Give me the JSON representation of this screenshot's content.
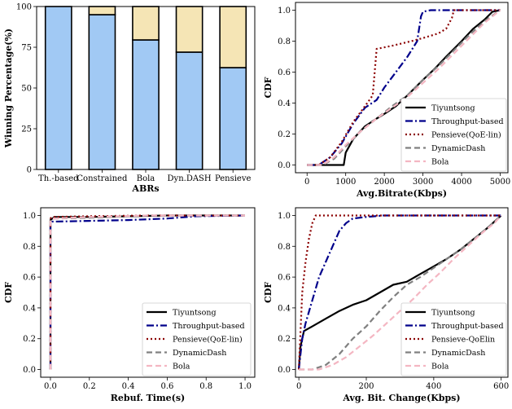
{
  "chart_data": [
    {
      "id": "a",
      "type": "bar",
      "stacked": true,
      "xlabel": "ABRs",
      "ylabel": "Winning Percentage(%)",
      "ylim": [
        0,
        100
      ],
      "yticks": [
        "0",
        "25",
        "50",
        "75",
        "100"
      ],
      "categories": [
        "Th.-based",
        "Constrained",
        "Bola",
        "Dyn.DASH",
        "Pensieve"
      ],
      "series": [
        {
          "values": [
            100,
            95,
            79.5,
            72,
            62.5
          ],
          "color": "#a1c9f4"
        },
        {
          "values": [
            0,
            5,
            20.5,
            28,
            37.5
          ],
          "color": "#f5e5b5"
        }
      ],
      "grid": false
    },
    {
      "id": "b",
      "type": "line",
      "xlabel": "Avg.Bitrate(Kbps)",
      "ylabel": "CDF",
      "xlim": [
        -300,
        5200
      ],
      "ylim": [
        -0.05,
        1.05
      ],
      "xticks": [
        "0",
        "1000",
        "2000",
        "3000",
        "4000",
        "5000"
      ],
      "yticks": [
        "0.0",
        "0.2",
        "0.4",
        "0.6",
        "0.8",
        "1.0"
      ],
      "legend_position": "bottom-right",
      "series": [
        {
          "name": "Tiyuntsong",
          "color": "#000000",
          "dash": "solid",
          "x": [
            0,
            950,
            1000,
            1200,
            1500,
            1800,
            2000,
            2300,
            2600,
            3000,
            3300,
            3600,
            4000,
            4300,
            4600,
            4800,
            5000
          ],
          "y": [
            0,
            0,
            0.08,
            0.17,
            0.25,
            0.3,
            0.33,
            0.38,
            0.45,
            0.55,
            0.62,
            0.7,
            0.8,
            0.88,
            0.94,
            0.99,
            1.0
          ]
        },
        {
          "name": "Throughput-based",
          "color": "#00008b",
          "dash": "dashdot",
          "x": [
            0,
            300,
            600,
            900,
            1200,
            1500,
            1800,
            2000,
            2300,
            2600,
            2850,
            2950,
            3000,
            3200,
            3600,
            5000
          ],
          "y": [
            0,
            0,
            0.05,
            0.14,
            0.27,
            0.37,
            0.42,
            0.5,
            0.6,
            0.7,
            0.8,
            0.96,
            0.99,
            1.0,
            1.0,
            1.0
          ]
        },
        {
          "name": "Pensieve(QoE-lin)",
          "color": "#8b0000",
          "dash": "dotted",
          "x": [
            0,
            300,
            600,
            900,
            1200,
            1500,
            1700,
            1800,
            2200,
            2700,
            3000,
            3400,
            3600,
            3750,
            3800,
            5000
          ],
          "y": [
            0,
            0,
            0.05,
            0.15,
            0.28,
            0.38,
            0.45,
            0.75,
            0.77,
            0.8,
            0.82,
            0.85,
            0.88,
            0.95,
            1.0,
            1.0
          ]
        },
        {
          "name": "DynamicDash",
          "color": "#808080",
          "dash": "dashed",
          "x": [
            0,
            400,
            700,
            1000,
            1400,
            1800,
            2200,
            2600,
            3000,
            3400,
            3800,
            4200,
            4600,
            5000
          ],
          "y": [
            0,
            0,
            0.04,
            0.12,
            0.22,
            0.3,
            0.38,
            0.45,
            0.55,
            0.64,
            0.74,
            0.84,
            0.93,
            1.0
          ]
        },
        {
          "name": "Bola",
          "color": "#f4b6c2",
          "dash": "dashed",
          "x": [
            0,
            400,
            700,
            1000,
            1400,
            1800,
            2200,
            2600,
            3000,
            3400,
            3800,
            4200,
            4600,
            5000
          ],
          "y": [
            0,
            0,
            0.05,
            0.13,
            0.22,
            0.3,
            0.37,
            0.44,
            0.53,
            0.62,
            0.72,
            0.82,
            0.92,
            1.0
          ]
        }
      ]
    },
    {
      "id": "c",
      "type": "line",
      "xlabel": "Rebuf. Time(s)",
      "ylabel": "CDF",
      "xlim": [
        -0.05,
        1.05
      ],
      "ylim": [
        -0.05,
        1.05
      ],
      "xticks": [
        "0.0",
        "0.2",
        "0.4",
        "0.6",
        "0.8",
        "1.0"
      ],
      "yticks": [
        "0.0",
        "0.2",
        "0.4",
        "0.6",
        "0.8",
        "1.0"
      ],
      "legend_position": "bottom-right",
      "series": [
        {
          "name": "Tiyuntsong",
          "color": "#000000",
          "dash": "solid",
          "x": [
            0,
            0,
            0.01,
            0.02,
            0.2,
            0.6,
            1.0
          ],
          "y": [
            0,
            0.97,
            0.98,
            0.99,
            0.99,
            1.0,
            1.0
          ]
        },
        {
          "name": "Throughput-based",
          "color": "#00008b",
          "dash": "dashdot",
          "x": [
            0,
            0,
            0.01,
            0.02,
            0.2,
            0.4,
            0.6,
            0.75,
            1.0
          ],
          "y": [
            0,
            0.95,
            0.96,
            0.96,
            0.965,
            0.97,
            0.98,
            0.995,
            1.0
          ]
        },
        {
          "name": "Pensieve(QoE-lin)",
          "color": "#8b0000",
          "dash": "dotted",
          "x": [
            0,
            0,
            0.01,
            0.2,
            0.5,
            1.0
          ],
          "y": [
            0,
            0.98,
            0.99,
            0.995,
            1.0,
            1.0
          ]
        },
        {
          "name": "DynamicDash",
          "color": "#808080",
          "dash": "dashed",
          "x": [
            0,
            0,
            0.01,
            0.2,
            0.5,
            1.0
          ],
          "y": [
            0,
            0.97,
            0.98,
            0.985,
            1.0,
            1.0
          ]
        },
        {
          "name": "Bola",
          "color": "#f4b6c2",
          "dash": "dashed",
          "x": [
            0,
            0,
            0.01,
            0.2,
            0.5,
            1.0
          ],
          "y": [
            0,
            0.97,
            0.98,
            0.99,
            1.0,
            1.0
          ]
        }
      ]
    },
    {
      "id": "d",
      "type": "line",
      "xlabel": "Avg. Bit. Change(Kbps)",
      "ylabel": "CDF",
      "xlim": [
        -10,
        620
      ],
      "ylim": [
        -0.05,
        1.05
      ],
      "xticks": [
        "0",
        "200",
        "400",
        "600"
      ],
      "yticks": [
        "0.0",
        "0.2",
        "0.4",
        "0.6",
        "0.8",
        "1.0"
      ],
      "legend_position": "bottom-right",
      "series": [
        {
          "name": "Tiyuntsong",
          "color": "#000000",
          "dash": "solid",
          "x": [
            0,
            5,
            15,
            40,
            80,
            120,
            160,
            200,
            240,
            280,
            320,
            360,
            400,
            440,
            480,
            520,
            560,
            600
          ],
          "y": [
            0,
            0.15,
            0.25,
            0.28,
            0.33,
            0.38,
            0.42,
            0.45,
            0.5,
            0.55,
            0.57,
            0.62,
            0.67,
            0.72,
            0.78,
            0.85,
            0.92,
            1.0
          ]
        },
        {
          "name": "Throughput-based",
          "color": "#00008b",
          "dash": "dashdot",
          "x": [
            0,
            10,
            20,
            40,
            60,
            80,
            100,
            120,
            140,
            160,
            200,
            250,
            600
          ],
          "y": [
            0,
            0.2,
            0.3,
            0.45,
            0.6,
            0.7,
            0.8,
            0.9,
            0.95,
            0.98,
            0.99,
            1.0,
            1.0
          ]
        },
        {
          "name": "Pensieve-QoElin",
          "color": "#8b0000",
          "dash": "dotted",
          "x": [
            0,
            5,
            10,
            20,
            30,
            40,
            50,
            600
          ],
          "y": [
            0,
            0.25,
            0.5,
            0.7,
            0.85,
            0.95,
            1.0,
            1.0
          ]
        },
        {
          "name": "DynamicDash",
          "color": "#808080",
          "dash": "dashed",
          "x": [
            0,
            40,
            80,
            120,
            160,
            200,
            240,
            280,
            320,
            360,
            400,
            440,
            480,
            520,
            560,
            600
          ],
          "y": [
            0,
            0,
            0.03,
            0.1,
            0.2,
            0.28,
            0.38,
            0.47,
            0.55,
            0.6,
            0.66,
            0.72,
            0.78,
            0.85,
            0.92,
            1.0
          ]
        },
        {
          "name": "Bola",
          "color": "#f4b6c2",
          "dash": "dashed",
          "x": [
            0,
            60,
            100,
            140,
            180,
            220,
            260,
            300,
            340,
            380,
            420,
            460,
            500,
            540,
            580,
            600
          ],
          "y": [
            0,
            0,
            0.03,
            0.08,
            0.15,
            0.22,
            0.3,
            0.38,
            0.46,
            0.55,
            0.63,
            0.72,
            0.8,
            0.88,
            0.95,
            1.0
          ]
        }
      ]
    }
  ]
}
